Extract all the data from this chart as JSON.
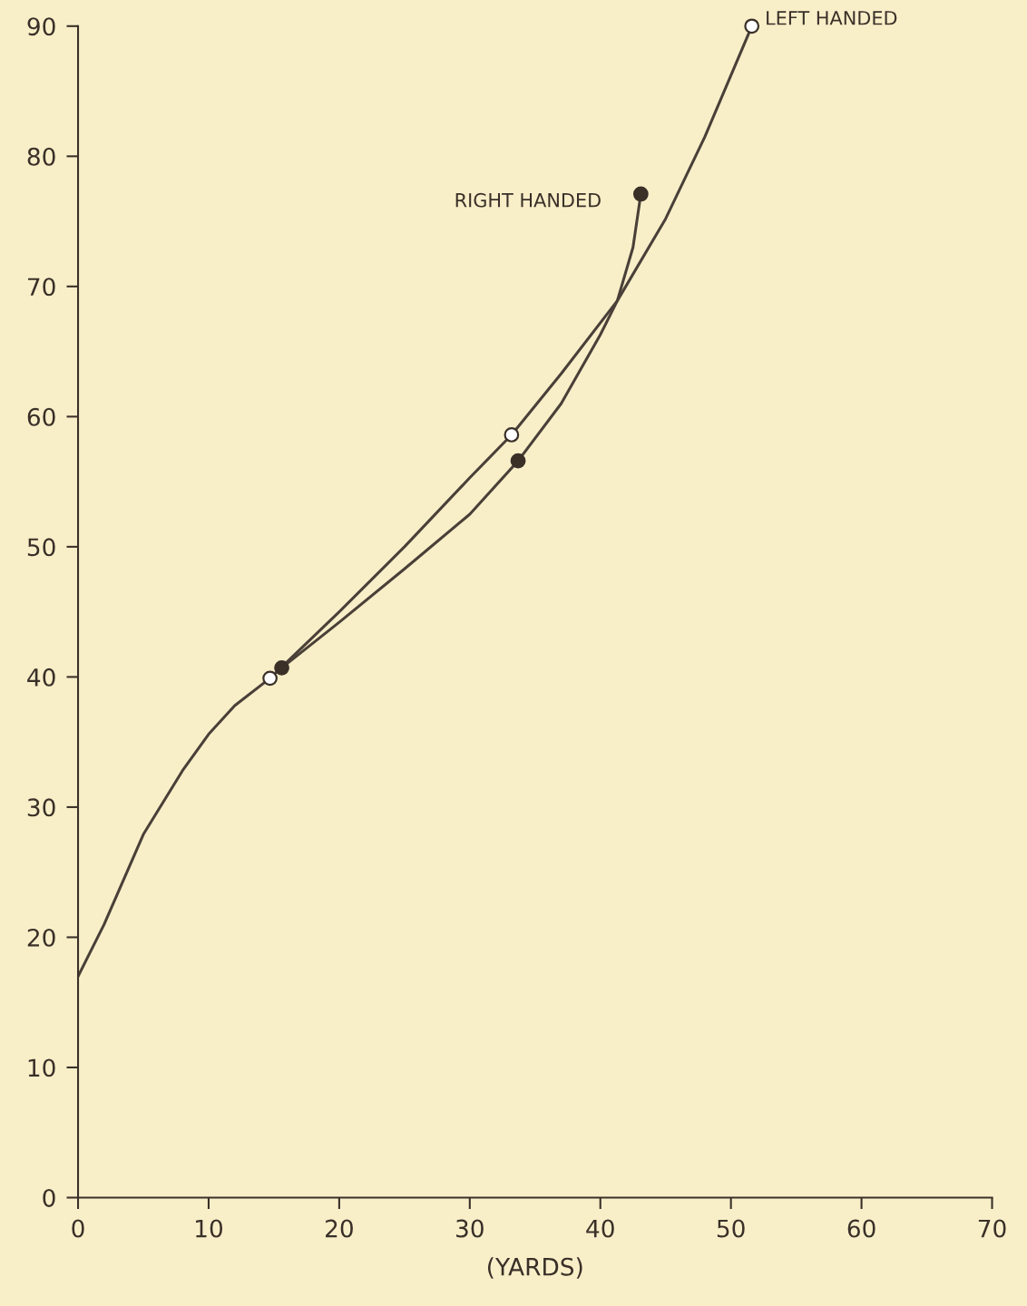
{
  "chart_data": {
    "type": "line",
    "xlabel": "(YARDS)",
    "xlim": [
      0,
      70
    ],
    "ylim": [
      0,
      90
    ],
    "xticks": [
      0,
      10,
      20,
      30,
      40,
      50,
      60,
      70
    ],
    "yticks": [
      0,
      10,
      20,
      30,
      40,
      50,
      60,
      70,
      80,
      90
    ],
    "grid": false,
    "legend": false,
    "series": [
      {
        "name": "LEFT HANDED",
        "color": "#4a4038",
        "marker": "none",
        "x": [
          0,
          2,
          5,
          8,
          10,
          12,
          14.7,
          20,
          25,
          30,
          33.2,
          37,
          41.3,
          45,
          48,
          51.6
        ],
        "values": [
          17,
          21,
          27.9,
          32.8,
          35.6,
          37.8,
          39.9,
          45,
          50,
          55.3,
          58.6,
          63.3,
          68.9,
          75.2,
          81.5,
          90
        ]
      },
      {
        "name": "RIGHT HANDED",
        "color": "#4a4038",
        "marker": "none",
        "x": [
          15.6,
          20,
          25,
          30,
          33.7,
          37,
          40,
          41.3,
          42.5,
          43.1
        ],
        "values": [
          40.7,
          44.2,
          48.3,
          52.5,
          56.6,
          61,
          66.3,
          68.9,
          73,
          77.1
        ]
      },
      {
        "type": "scatter",
        "color": "#ffffff",
        "marker": "circle",
        "x": [
          14.7,
          33.2,
          51.6
        ],
        "values": [
          39.9,
          58.6,
          90
        ]
      },
      {
        "type": "scatter",
        "color": "#3a3028",
        "marker": "circle",
        "x": [
          15.6,
          33.7,
          43.1
        ],
        "values": [
          40.7,
          56.6,
          77.1
        ]
      }
    ]
  }
}
